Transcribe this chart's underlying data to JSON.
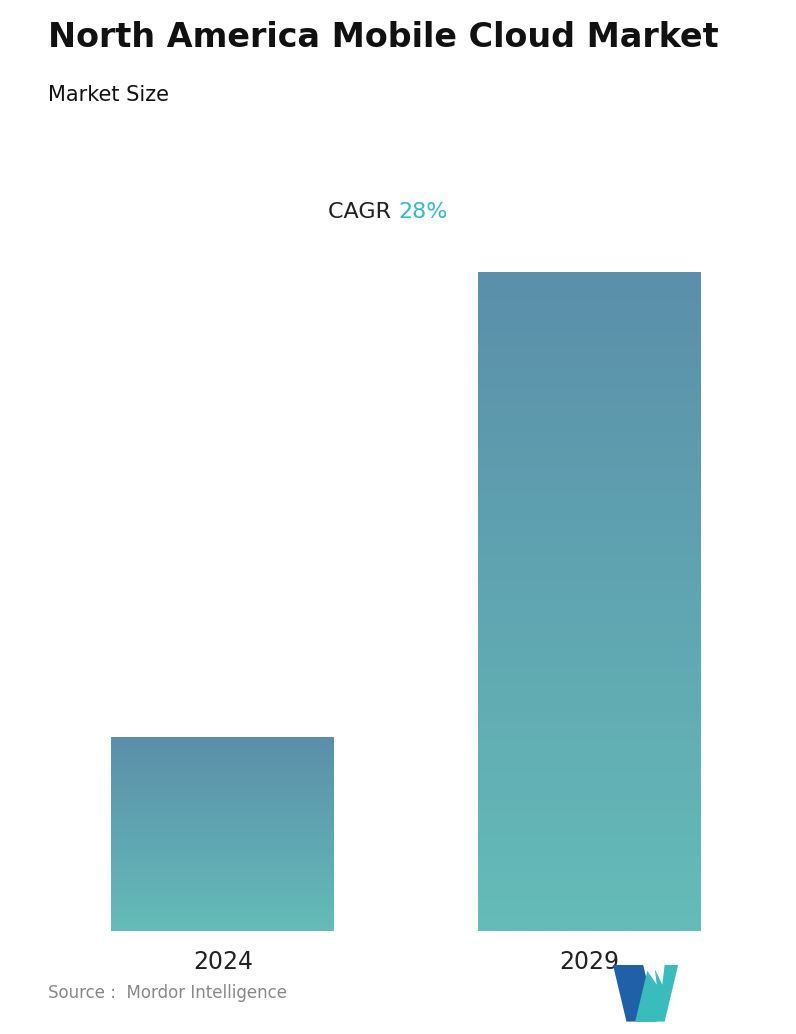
{
  "title": "North America Mobile Cloud Market",
  "subtitle": "Market Size",
  "cagr_label": "CAGR",
  "cagr_value": "28%",
  "cagr_color": "#3ab8c8",
  "categories": [
    "2024",
    "2029"
  ],
  "values": [
    1.0,
    3.4
  ],
  "bar_top_color": "#5b8faa",
  "bar_bottom_color": "#65bcb8",
  "bar_width": 0.28,
  "x_positions": [
    0.22,
    0.68
  ],
  "source_text": "Source :  Mordor Intelligence",
  "background_color": "#ffffff",
  "title_fontsize": 24,
  "subtitle_fontsize": 15,
  "cagr_fontsize": 16,
  "tick_fontsize": 17,
  "source_fontsize": 12,
  "logo_dark": "#2060a8",
  "logo_teal": "#3abcbc"
}
